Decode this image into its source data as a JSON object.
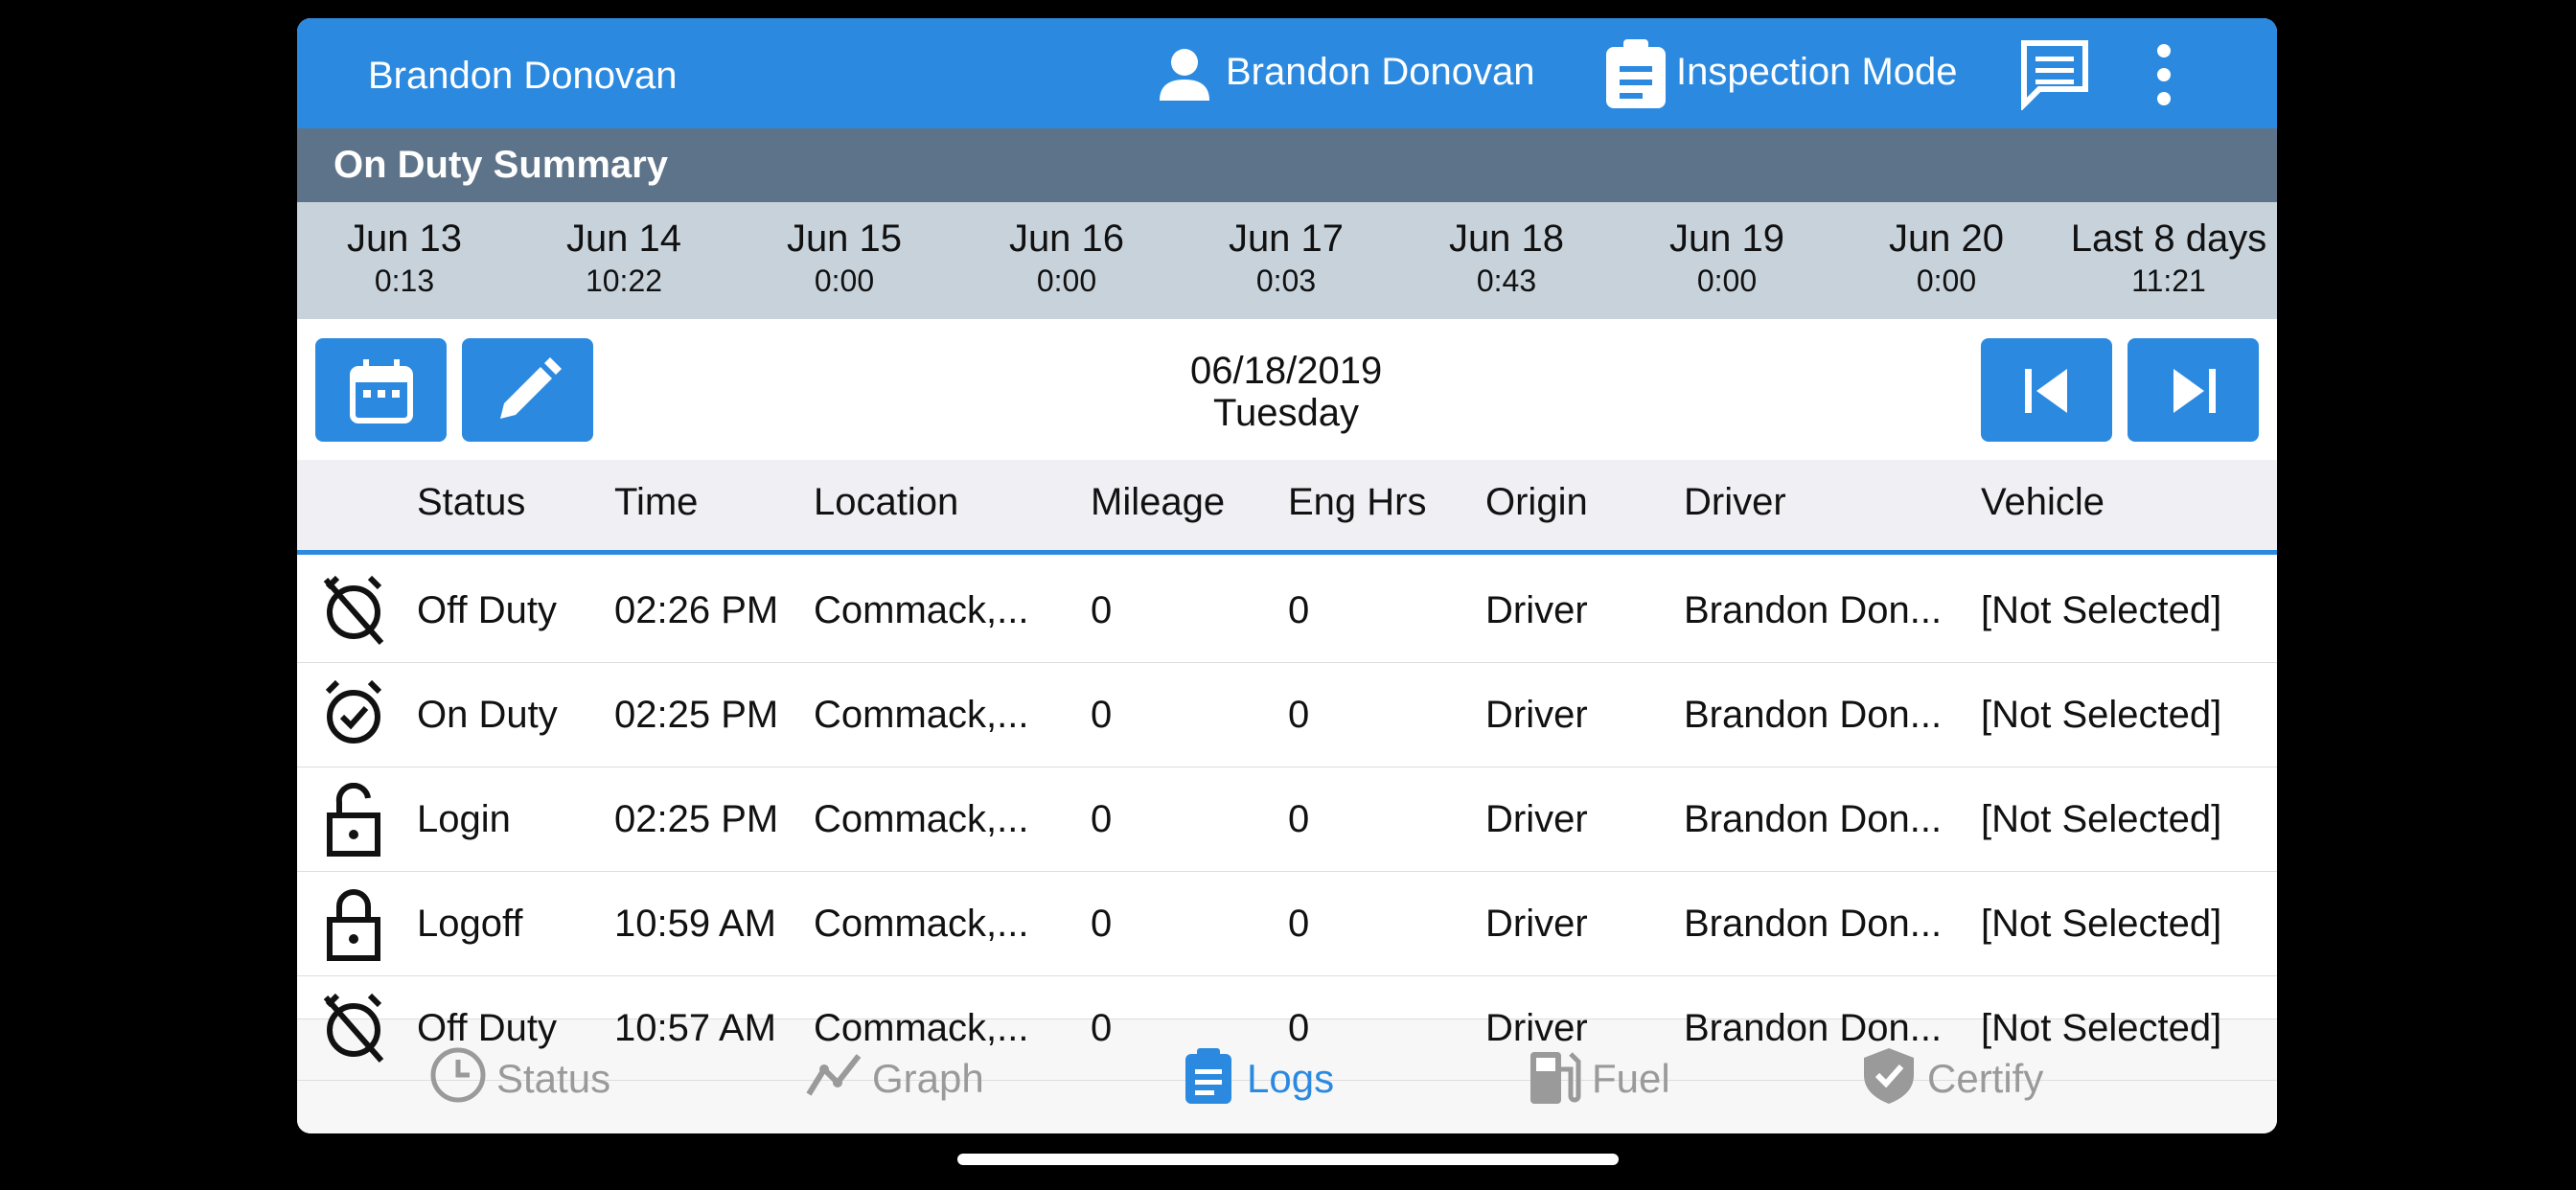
{
  "header": {
    "title": "Brandon Donovan",
    "user": "Brandon Donovan",
    "mode": "Inspection Mode"
  },
  "summary": {
    "title": "On Duty Summary",
    "days": [
      {
        "date": "Jun 13",
        "hours": "0:13"
      },
      {
        "date": "Jun 14",
        "hours": "10:22"
      },
      {
        "date": "Jun 15",
        "hours": "0:00"
      },
      {
        "date": "Jun 16",
        "hours": "0:00"
      },
      {
        "date": "Jun 17",
        "hours": "0:03"
      },
      {
        "date": "Jun 18",
        "hours": "0:43"
      },
      {
        "date": "Jun 19",
        "hours": "0:00"
      },
      {
        "date": "Jun 20",
        "hours": "0:00"
      },
      {
        "date": "Last 8 days",
        "hours": "11:21"
      }
    ]
  },
  "toolbar": {
    "date": "06/18/2019",
    "weekday": "Tuesday"
  },
  "table": {
    "columns": [
      "Status",
      "Time",
      "Location",
      "Mileage",
      "Eng Hrs",
      "Origin",
      "Driver",
      "Vehicle"
    ],
    "rows": [
      [
        "Off Duty",
        "02:26 PM",
        "Commack,...",
        "0",
        "0",
        "Driver",
        "Brandon Don...",
        "[Not Selected]"
      ],
      [
        "On Duty",
        "02:25 PM",
        "Commack,...",
        "0",
        "0",
        "Driver",
        "Brandon Don...",
        "[Not Selected]"
      ],
      [
        "Login",
        "02:25 PM",
        "Commack,...",
        "0",
        "0",
        "Driver",
        "Brandon Don...",
        "[Not Selected]"
      ],
      [
        "Logoff",
        "10:59 AM",
        "Commack,...",
        "0",
        "0",
        "Driver",
        "Brandon Don...",
        "[Not Selected]"
      ],
      [
        "Off Duty",
        "10:57 AM",
        "Commack,...",
        "0",
        "0",
        "Driver",
        "Brandon Don...",
        "[Not Selected]"
      ]
    ]
  },
  "tabs": [
    "Status",
    "Graph",
    "Logs",
    "Fuel",
    "Certify"
  ]
}
